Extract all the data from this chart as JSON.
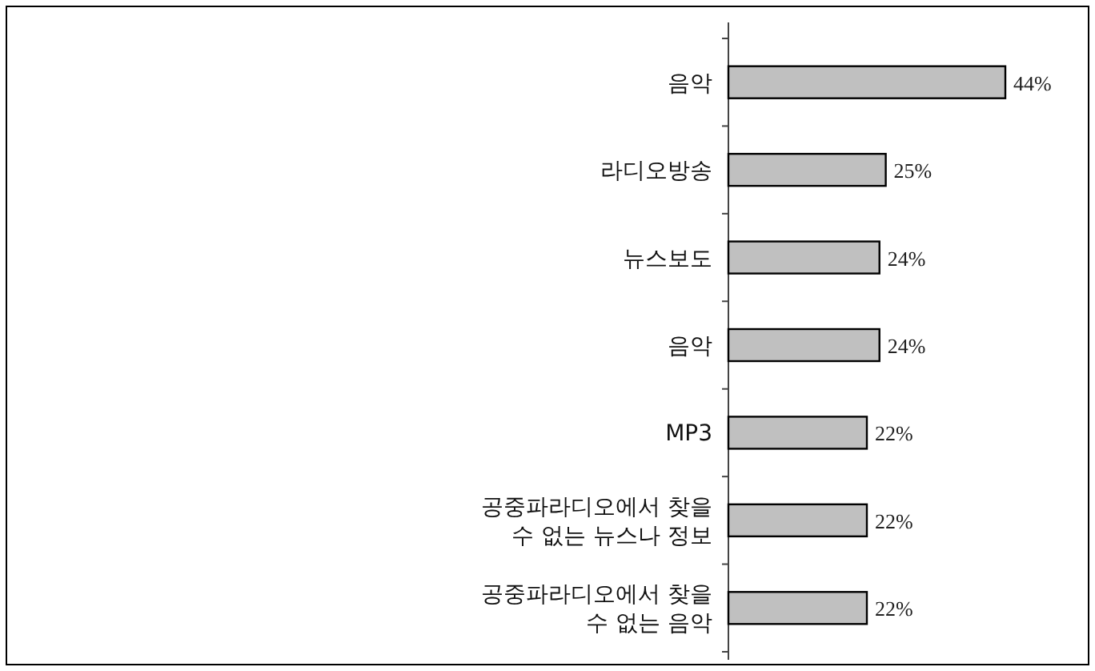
{
  "chart_data": {
    "type": "bar",
    "orientation": "horizontal",
    "categories": [
      "음악",
      "라디오방송",
      "뉴스보도",
      "음악",
      "MP3",
      "공중파라디오에서 찾을\n수 없는 뉴스나 정보",
      "공중파라디오에서 찾을\n수 없는 음악"
    ],
    "values": [
      44,
      25,
      24,
      24,
      22,
      22,
      22
    ],
    "value_labels": [
      "44%",
      "25%",
      "24%",
      "24%",
      "22%",
      "22%",
      "22%"
    ],
    "color": "#c0c0c0"
  }
}
